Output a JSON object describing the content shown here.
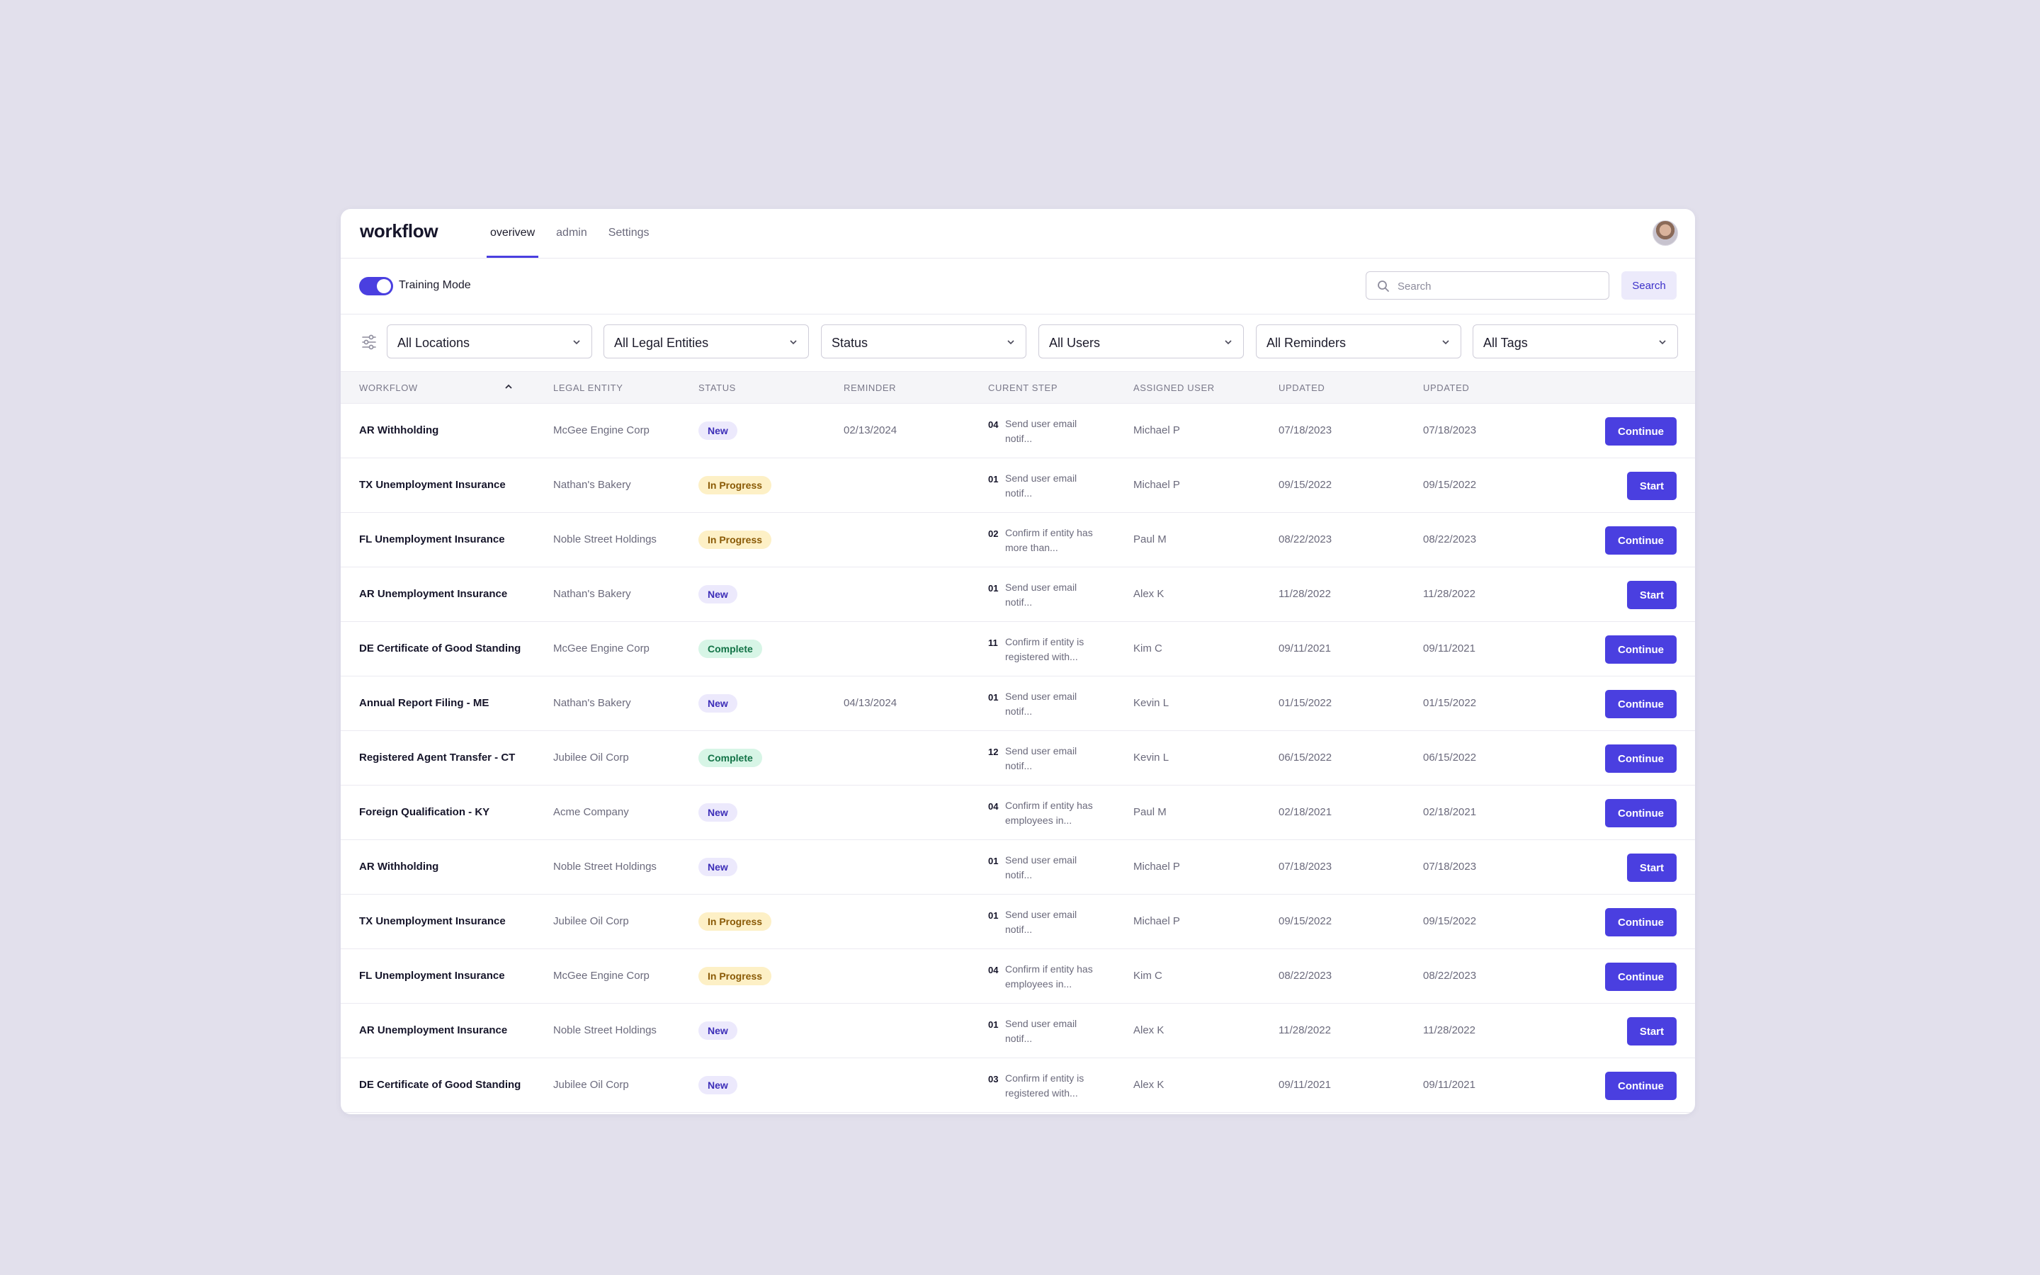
{
  "app": {
    "logo": "workflow",
    "nav": [
      {
        "label": "overivew",
        "active": true
      },
      {
        "label": "admin",
        "active": false
      },
      {
        "label": "Settings",
        "active": false
      }
    ]
  },
  "toolbar": {
    "training_mode_label": "Training Mode",
    "training_mode_on": true,
    "search_placeholder": "Search",
    "search_value": "",
    "search_button": "Search"
  },
  "filters": [
    {
      "label": "All Locations"
    },
    {
      "label": "All Legal Entities"
    },
    {
      "label": "Status"
    },
    {
      "label": "All Users"
    },
    {
      "label": "All Reminders"
    },
    {
      "label": "All Tags"
    }
  ],
  "table": {
    "headers": [
      "WORKFLOW",
      "LEGAL ENTITY",
      "STATUS",
      "REMINDER",
      "CURENT STEP",
      "ASSIGNED USER",
      "UPDATED",
      "UPDATED"
    ],
    "rows": [
      {
        "workflow": "AR Withholding",
        "entity": "McGee Engine Corp",
        "status": "New",
        "reminder": "02/13/2024",
        "step_num": "04",
        "step_text": "Send user email notif...",
        "user": "Michael P",
        "updated1": "07/18/2023",
        "updated2": "07/18/2023",
        "action": "Continue"
      },
      {
        "workflow": "TX Unemployment Insurance",
        "entity": "Nathan's Bakery",
        "status": "In Progress",
        "reminder": "",
        "step_num": "01",
        "step_text": "Send user email notif...",
        "user": "Michael P",
        "updated1": "09/15/2022",
        "updated2": "09/15/2022",
        "action": "Start"
      },
      {
        "workflow": "FL Unemployment Insurance",
        "entity": "Noble Street Holdings",
        "status": "In Progress",
        "reminder": "",
        "step_num": "02",
        "step_text": "Confirm if entity has more than...",
        "user": "Paul M",
        "updated1": "08/22/2023",
        "updated2": "08/22/2023",
        "action": "Continue"
      },
      {
        "workflow": "AR Unemployment Insurance",
        "entity": "Nathan's Bakery",
        "status": "New",
        "reminder": "",
        "step_num": "01",
        "step_text": "Send user email notif...",
        "user": "Alex K",
        "updated1": "11/28/2022",
        "updated2": "11/28/2022",
        "action": "Start"
      },
      {
        "workflow": "DE Certificate of Good Standing",
        "entity": "McGee Engine Corp",
        "status": "Complete",
        "reminder": "",
        "step_num": "11",
        "step_text": "Confirm if entity is registered with...",
        "user": "Kim C",
        "updated1": "09/11/2021",
        "updated2": "09/11/2021",
        "action": "Continue"
      },
      {
        "workflow": "Annual Report Filing - ME",
        "entity": "Nathan's Bakery",
        "status": "New",
        "reminder": "04/13/2024",
        "step_num": "01",
        "step_text": "Send user email notif...",
        "user": "Kevin L",
        "updated1": "01/15/2022",
        "updated2": "01/15/2022",
        "action": "Continue"
      },
      {
        "workflow": "Registered Agent Transfer - CT",
        "entity": "Jubilee Oil Corp",
        "status": "Complete",
        "reminder": "",
        "step_num": "12",
        "step_text": "Send user email notif...",
        "user": "Kevin L",
        "updated1": "06/15/2022",
        "updated2": "06/15/2022",
        "action": "Continue"
      },
      {
        "workflow": "Foreign Qualification - KY",
        "entity": "Acme Company",
        "status": "New",
        "reminder": "",
        "step_num": "04",
        "step_text": "Confirm if entity has employees in...",
        "user": "Paul M",
        "updated1": "02/18/2021",
        "updated2": "02/18/2021",
        "action": "Continue"
      },
      {
        "workflow": "AR Withholding",
        "entity": "Noble Street Holdings",
        "status": "New",
        "reminder": "",
        "step_num": "01",
        "step_text": "Send user email notif...",
        "user": "Michael P",
        "updated1": "07/18/2023",
        "updated2": "07/18/2023",
        "action": "Start"
      },
      {
        "workflow": "TX Unemployment Insurance",
        "entity": "Jubilee Oil Corp",
        "status": "In Progress",
        "reminder": "",
        "step_num": "01",
        "step_text": "Send user email notif...",
        "user": "Michael P",
        "updated1": "09/15/2022",
        "updated2": "09/15/2022",
        "action": "Continue"
      },
      {
        "workflow": "FL Unemployment Insurance",
        "entity": "McGee Engine Corp",
        "status": "In Progress",
        "reminder": "",
        "step_num": "04",
        "step_text": "Confirm if entity has employees in...",
        "user": "Kim C",
        "updated1": "08/22/2023",
        "updated2": "08/22/2023",
        "action": "Continue"
      },
      {
        "workflow": "AR Unemployment Insurance",
        "entity": "Noble Street Holdings",
        "status": "New",
        "reminder": "",
        "step_num": "01",
        "step_text": "Send user email notif...",
        "user": "Alex K",
        "updated1": "11/28/2022",
        "updated2": "11/28/2022",
        "action": "Start"
      },
      {
        "workflow": "DE Certificate of Good Standing",
        "entity": "Jubilee Oil Corp",
        "status": "New",
        "reminder": "",
        "step_num": "03",
        "step_text": "Confirm if entity is registered with...",
        "user": "Alex K",
        "updated1": "09/11/2021",
        "updated2": "09/11/2021",
        "action": "Continue"
      }
    ]
  },
  "colors": {
    "accent": "#4a3fe0",
    "background": "#e2e0ec",
    "badge_new": "#ece9fc",
    "badge_in_progress": "#fdf0c6",
    "badge_complete": "#d7f5e6"
  },
  "icons": [
    "search-icon",
    "filter-sliders-icon",
    "chevron-down-icon",
    "sort-up-icon",
    "user-avatar"
  ]
}
